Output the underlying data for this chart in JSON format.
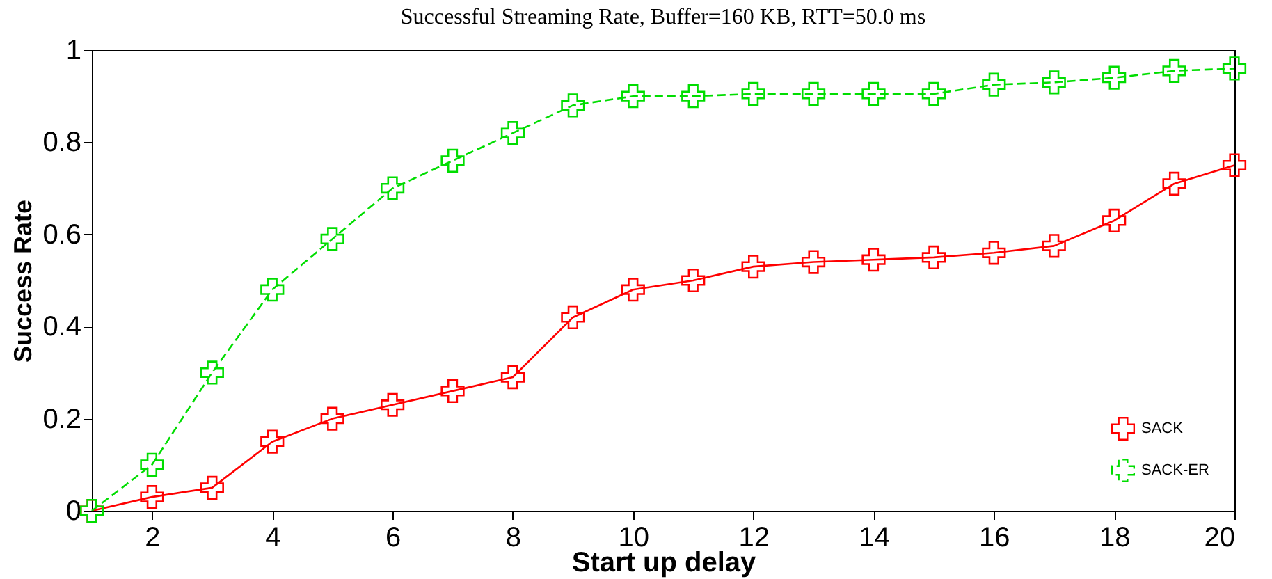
{
  "chart_data": {
    "type": "line",
    "title": "Successful Streaming Rate, Buffer=160 KB, RTT=50.0 ms",
    "xlabel": "Start up delay",
    "ylabel": "Success Rate",
    "x": [
      1,
      2,
      3,
      4,
      5,
      6,
      7,
      8,
      9,
      10,
      11,
      12,
      13,
      14,
      15,
      16,
      17,
      18,
      19,
      20
    ],
    "series": [
      {
        "name": "SACK",
        "color": "#ff0000",
        "line_style": "solid",
        "values": [
          0,
          0.03,
          0.05,
          0.15,
          0.2,
          0.23,
          0.26,
          0.29,
          0.42,
          0.48,
          0.5,
          0.53,
          0.54,
          0.545,
          0.55,
          0.56,
          0.575,
          0.63,
          0.71,
          0.75
        ]
      },
      {
        "name": "SACK-ER",
        "color": "#00dd00",
        "line_style": "dashed",
        "values": [
          0,
          0.1,
          0.3,
          0.48,
          0.59,
          0.7,
          0.76,
          0.82,
          0.88,
          0.9,
          0.9,
          0.905,
          0.905,
          0.905,
          0.905,
          0.925,
          0.93,
          0.94,
          0.955,
          0.96
        ]
      }
    ],
    "marker": "cross",
    "xlim": [
      1,
      20
    ],
    "xticks": [
      2,
      4,
      6,
      8,
      10,
      12,
      14,
      16,
      18,
      20
    ],
    "ylim": [
      0,
      1
    ],
    "yticks": [
      0,
      0.2,
      0.4,
      0.6,
      0.8,
      1
    ],
    "grid": false,
    "legend": "bottom right"
  }
}
